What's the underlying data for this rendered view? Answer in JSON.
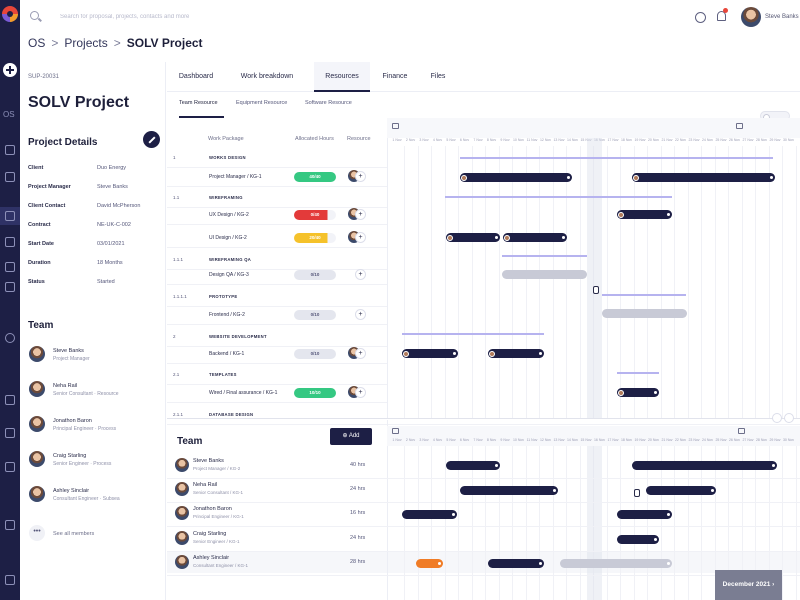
{
  "search": {
    "placeholder": "Search for proposal, projects, contacts and more"
  },
  "user": {
    "name": "Steve Banks"
  },
  "rail": {
    "label_os": "OS"
  },
  "breadcrumb": {
    "root": "OS",
    "section": "Projects",
    "current": "SOLV Project",
    "separator": ">"
  },
  "project": {
    "code": "SUP-20031",
    "title": "SOLV Project",
    "details_title": "Project Details",
    "details": [
      {
        "label": "Client",
        "value": "Duo Energy"
      },
      {
        "label": "Project Manager",
        "value": "Steve Banks"
      },
      {
        "label": "Client Contact",
        "value": "David McPherson"
      },
      {
        "label": "Contract",
        "value": "NE-UK-C-002"
      },
      {
        "label": "Start Date",
        "value": "03/01/2021"
      },
      {
        "label": "Duration",
        "value": "18 Months"
      },
      {
        "label": "Status",
        "value": "Started"
      }
    ],
    "team_title": "Team",
    "team": [
      {
        "name": "Steve Banks",
        "role": "Project Manager"
      },
      {
        "name": "Neha Rail",
        "role": "Senior Consultant · Resource"
      },
      {
        "name": "Jonathon Baron",
        "role": "Principal Engineer · Process"
      },
      {
        "name": "Craig Starling",
        "role": "Senior Engineer · Process"
      },
      {
        "name": "Ashley Sinclair",
        "role": "Consultant Engineer · Subsea"
      }
    ],
    "see_all": "See all members",
    "more_glyph": "•••"
  },
  "tabs": [
    "Dashboard",
    "Work breakdown",
    "Resources",
    "Finance",
    "Files"
  ],
  "subtabs": [
    "Team Resource",
    "Equipment Resource",
    "Software Resource"
  ],
  "table": {
    "headers": {
      "package": "Work Package",
      "hours": "Allocated Hours",
      "resource": "Resource"
    },
    "rows": [
      {
        "num": "1",
        "label": "WORKS DESIGN",
        "caps": true
      },
      {
        "num": "",
        "label": "Project Manager / KG-1",
        "hours": "40/40",
        "pill": "green",
        "avatar": true
      },
      {
        "num": "1.1",
        "label": "WIREFRAMING",
        "caps": true
      },
      {
        "num": "",
        "label": "UX Design / KG-2",
        "hours": "0/40",
        "pill": "red",
        "avatar": true
      },
      {
        "num": "",
        "label": "UI Design / KG-2",
        "hours": "20/40",
        "pill": "yellow",
        "avatar": true
      },
      {
        "num": "1.1.1",
        "label": "WIREFRAMING QA",
        "caps": true
      },
      {
        "num": "",
        "label": "Design QA / KG-3",
        "hours": "0/10",
        "pill": "grey",
        "avatar": false
      },
      {
        "num": "1.1.1.1",
        "label": "PROTOTYPE",
        "caps": true
      },
      {
        "num": "",
        "label": "Frontend / KG-2",
        "hours": "0/10",
        "pill": "grey",
        "avatar": false
      },
      {
        "num": "2",
        "label": "WEBSITE DEVELOPMENT",
        "caps": true
      },
      {
        "num": "",
        "label": "Backend / KG-1",
        "hours": "0/10",
        "pill": "grey",
        "avatar": true
      },
      {
        "num": "2.1",
        "label": "TEMPLATES",
        "caps": true
      },
      {
        "num": "",
        "label": "Wired / Final assurance / KG-1",
        "hours": "10/10",
        "pill": "green",
        "avatar": true
      },
      {
        "num": "2.1.1",
        "label": "DATABASE DESIGN",
        "caps": true
      }
    ]
  },
  "dates": [
    "1 Nov",
    "2 Nov",
    "3 Nov",
    "4 Nov",
    "5 Nov",
    "6 Nov",
    "7 Nov",
    "8 Nov",
    "9 Nov",
    "10 Nov",
    "11 Nov",
    "12 Nov",
    "13 Nov",
    "14 Nov",
    "15 Nov",
    "16 Nov",
    "17 Nov",
    "18 Nov",
    "19 Nov",
    "20 Nov",
    "21 Nov",
    "22 Nov",
    "23 Nov",
    "24 Nov",
    "25 Nov",
    "26 Nov",
    "27 Nov",
    "28 Nov",
    "29 Nov",
    "30 Nov"
  ],
  "team_panel": {
    "title": "Team",
    "add_label": "Add",
    "members": [
      {
        "name": "Steve Banks",
        "role": "Project Manager / KG-2",
        "hours": "40 hrs"
      },
      {
        "name": "Neha Rail",
        "role": "Senior Consultant / KG-1",
        "hours": "24 hrs"
      },
      {
        "name": "Jonathon Baron",
        "role": "Principal Engineer / KG-1",
        "hours": "16 hrs"
      },
      {
        "name": "Craig Starling",
        "role": "Senior Engineer / KG-1",
        "hours": "24 hrs"
      },
      {
        "name": "Ashley Sinclair",
        "role": "Consultant Engineer / KG-1",
        "hours": "28 hrs"
      }
    ]
  },
  "date_badge": "December 2021 ›",
  "colors": {
    "navy": "#1d1f45",
    "green": "#35c882",
    "red": "#e33a3a",
    "yellow": "#f5c22b",
    "orange": "#f07c26",
    "lavender": "#b6b3ef"
  }
}
